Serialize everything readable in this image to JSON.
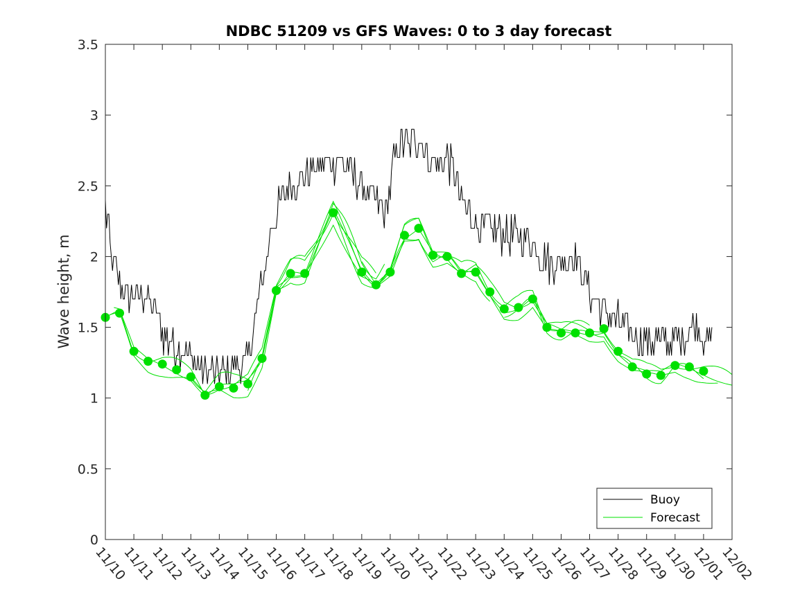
{
  "chart_data": {
    "type": "line",
    "title": "NDBC 51209 vs GFS Waves: 0 to 3 day forecast",
    "xlabel": "",
    "ylabel": "Wave height, m",
    "xlim": [
      0,
      22
    ],
    "ylim": [
      0,
      3.5
    ],
    "x_tick_values": [
      0,
      1,
      2,
      3,
      4,
      5,
      6,
      7,
      8,
      9,
      10,
      11,
      12,
      13,
      14,
      15,
      16,
      17,
      18,
      19,
      20,
      21,
      22
    ],
    "x_tick_labels": [
      "11/10",
      "11/11",
      "11/12",
      "11/13",
      "11/14",
      "11/15",
      "11/16",
      "11/17",
      "11/18",
      "11/19",
      "11/20",
      "11/21",
      "11/22",
      "11/23",
      "11/24",
      "11/25",
      "11/26",
      "11/27",
      "11/28",
      "11/29",
      "11/30",
      "12/01",
      "12/02"
    ],
    "y_tick_values": [
      0,
      0.5,
      1,
      1.5,
      2,
      2.5,
      3,
      3.5
    ],
    "y_tick_labels": [
      "0",
      "0.5",
      "1",
      "1.5",
      "2",
      "2.5",
      "3",
      "3.5"
    ],
    "colors": {
      "buoy": "#000000",
      "forecast": "#00e000",
      "axes": "#262626"
    },
    "legend": {
      "position": "bottom-right",
      "entries": [
        {
          "label": "Buoy",
          "color": "#000000"
        },
        {
          "label": "Forecast",
          "color": "#00e000"
        }
      ]
    },
    "buoy_anchors": {
      "x": [
        0,
        0.1,
        0.2,
        0.4,
        0.6,
        0.9,
        1.2,
        1.5,
        1.8,
        2.0,
        2.5,
        3.0,
        3.3,
        3.6,
        4.0,
        4.4,
        4.8,
        5.0,
        5.3,
        5.6,
        5.8,
        6.0,
        6.2,
        6.5,
        6.8,
        7.2,
        7.6,
        8.0,
        8.3,
        8.6,
        9.0,
        9.2,
        9.5,
        9.8,
        10.0,
        10.2,
        10.5,
        10.8,
        11.0,
        11.3,
        11.6,
        12.0,
        12.3,
        12.6,
        13.0,
        13.5,
        14.0,
        14.5,
        15.0,
        15.3,
        15.6,
        16.0,
        16.3,
        16.6,
        17.0,
        17.5,
        18.0,
        18.5,
        19.0,
        19.5,
        20.0,
        20.3,
        20.6,
        21.0,
        21.2,
        21.3
      ],
      "y": [
        2.35,
        2.2,
        2.0,
        1.9,
        1.75,
        1.7,
        1.75,
        1.7,
        1.6,
        1.45,
        1.35,
        1.3,
        1.2,
        1.2,
        1.15,
        1.2,
        1.25,
        1.3,
        1.6,
        1.9,
        2.2,
        2.3,
        2.4,
        2.5,
        2.55,
        2.6,
        2.65,
        2.65,
        2.7,
        2.6,
        2.5,
        2.45,
        2.4,
        2.3,
        2.5,
        2.75,
        2.8,
        2.8,
        2.85,
        2.7,
        2.65,
        2.7,
        2.55,
        2.35,
        2.25,
        2.2,
        2.15,
        2.15,
        2.1,
        2.0,
        1.95,
        1.95,
        2.0,
        1.95,
        1.75,
        1.6,
        1.55,
        1.45,
        1.4,
        1.4,
        1.4,
        1.45,
        1.5,
        1.45,
        1.4,
        1.45
      ]
    },
    "forecast_dots": {
      "x": [
        0,
        0.5,
        1,
        1.5,
        2,
        2.5,
        3,
        3.5,
        4,
        4.5,
        5,
        5.5,
        6,
        6.5,
        7,
        8,
        9,
        9.5,
        10,
        10.5,
        11,
        11.5,
        12,
        12.5,
        13,
        13.5,
        14,
        14.5,
        15,
        15.5,
        16,
        16.5,
        17,
        17.5,
        18,
        18.5,
        19,
        19.5,
        20,
        20.5,
        21
      ],
      "y": [
        1.57,
        1.6,
        1.33,
        1.26,
        1.24,
        1.2,
        1.15,
        1.02,
        1.08,
        1.07,
        1.1,
        1.28,
        1.76,
        1.88,
        1.88,
        2.31,
        1.89,
        1.8,
        1.89,
        2.15,
        2.2,
        2.01,
        2.0,
        1.88,
        1.89,
        1.75,
        1.63,
        1.64,
        1.7,
        1.5,
        1.46,
        1.46,
        1.46,
        1.49,
        1.33,
        1.22,
        1.17,
        1.16,
        1.23,
        1.22,
        1.19
      ]
    }
  }
}
